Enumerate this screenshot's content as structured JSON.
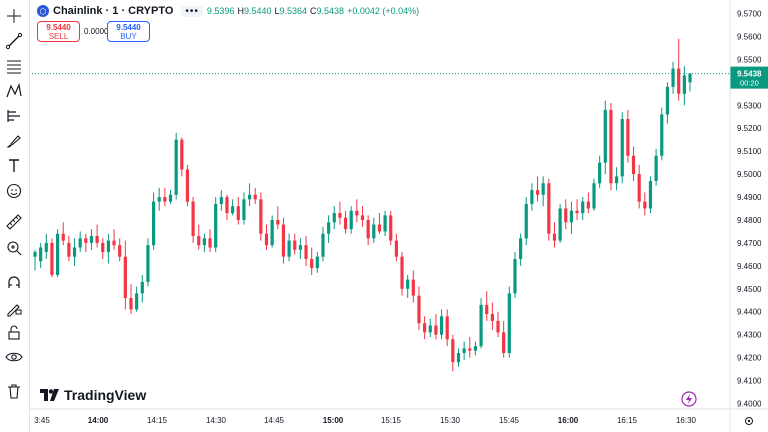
{
  "header": {
    "symbol_icon": "chainlink-logo-icon",
    "title": "Chainlink · 1 · CRYPTO",
    "more_label": "•••",
    "ohlc": {
      "o_value": "9.5396",
      "h_label": "H",
      "h_value": "9.5440",
      "l_label": "L",
      "l_value": "9.5364",
      "c_label": "C",
      "c_value": "9.5438",
      "change": "+0.0042 (+0.04%)"
    }
  },
  "trade": {
    "sell_price": "9.5440",
    "sell_label": "SELL",
    "spread": "0.0000",
    "buy_price": "9.5440",
    "buy_label": "BUY"
  },
  "price_axis": {
    "labels": [
      "9.5700",
      "9.5600",
      "9.5500",
      "9.5400",
      "9.5300",
      "9.5200",
      "9.5100",
      "9.5000",
      "9.4900",
      "9.4800",
      "9.4700",
      "9.4600",
      "9.4500",
      "9.4400",
      "9.4300",
      "9.4200",
      "9.4100",
      "9.4000"
    ],
    "current_price": "9.5438",
    "countdown": "00:20"
  },
  "time_axis": {
    "labels": [
      "3:45",
      "14:00",
      "14:15",
      "14:30",
      "14:45",
      "15:00",
      "15:15",
      "15:30",
      "15:45",
      "16:00",
      "16:15",
      "16:30"
    ]
  },
  "branding": {
    "logo_text": "TradingView"
  },
  "colors": {
    "up": "#089981",
    "down": "#f23645",
    "sell": "#f23645",
    "buy": "#2962ff",
    "price_line": "#089981"
  },
  "toolbar_icons": [
    "crosshair-icon",
    "trend-line-icon",
    "fib-retracement-icon",
    "pattern-icon",
    "prediction-icon",
    "brush-icon",
    "text-icon",
    "emoji-icon",
    "ruler-icon",
    "zoom-in-icon",
    "magnet-icon",
    "lock-drawing-icon",
    "lock-icon",
    "eye-icon",
    "trash-icon"
  ],
  "chart_data": {
    "type": "candlestick",
    "symbol": "Chainlink · 1 · CRYPTO",
    "price_range": [
      9.4,
      9.57
    ],
    "x_range": [
      "13:45",
      "16:31"
    ],
    "candles": [
      {
        "o": 9.464,
        "h": 9.467,
        "l": 9.458,
        "c": 9.466
      },
      {
        "o": 9.462,
        "h": 9.47,
        "l": 9.459,
        "c": 9.468
      },
      {
        "o": 9.466,
        "h": 9.474,
        "l": 9.463,
        "c": 9.47
      },
      {
        "o": 9.47,
        "h": 9.472,
        "l": 9.455,
        "c": 9.456
      },
      {
        "o": 9.456,
        "h": 9.476,
        "l": 9.455,
        "c": 9.474
      },
      {
        "o": 9.474,
        "h": 9.479,
        "l": 9.469,
        "c": 9.471
      },
      {
        "o": 9.47,
        "h": 9.473,
        "l": 9.462,
        "c": 9.464
      },
      {
        "o": 9.464,
        "h": 9.472,
        "l": 9.46,
        "c": 9.468
      },
      {
        "o": 9.468,
        "h": 9.475,
        "l": 9.466,
        "c": 9.472
      },
      {
        "o": 9.472,
        "h": 9.474,
        "l": 9.466,
        "c": 9.47
      },
      {
        "o": 9.47,
        "h": 9.476,
        "l": 9.467,
        "c": 9.473
      },
      {
        "o": 9.473,
        "h": 9.478,
        "l": 9.468,
        "c": 9.47
      },
      {
        "o": 9.47,
        "h": 9.472,
        "l": 9.463,
        "c": 9.466
      },
      {
        "o": 9.466,
        "h": 9.474,
        "l": 9.461,
        "c": 9.471
      },
      {
        "o": 9.471,
        "h": 9.476,
        "l": 9.467,
        "c": 9.469
      },
      {
        "o": 9.469,
        "h": 9.472,
        "l": 9.462,
        "c": 9.464
      },
      {
        "o": 9.464,
        "h": 9.471,
        "l": 9.441,
        "c": 9.446
      },
      {
        "o": 9.446,
        "h": 9.452,
        "l": 9.439,
        "c": 9.441
      },
      {
        "o": 9.441,
        "h": 9.451,
        "l": 9.44,
        "c": 9.448
      },
      {
        "o": 9.448,
        "h": 9.456,
        "l": 9.444,
        "c": 9.453
      },
      {
        "o": 9.453,
        "h": 9.472,
        "l": 9.451,
        "c": 9.469
      },
      {
        "o": 9.469,
        "h": 9.492,
        "l": 9.467,
        "c": 9.488
      },
      {
        "o": 9.488,
        "h": 9.494,
        "l": 9.484,
        "c": 9.49
      },
      {
        "o": 9.49,
        "h": 9.494,
        "l": 9.486,
        "c": 9.488
      },
      {
        "o": 9.488,
        "h": 9.493,
        "l": 9.487,
        "c": 9.491
      },
      {
        "o": 9.491,
        "h": 9.518,
        "l": 9.489,
        "c": 9.515
      },
      {
        "o": 9.515,
        "h": 9.516,
        "l": 9.499,
        "c": 9.502
      },
      {
        "o": 9.502,
        "h": 9.504,
        "l": 9.486,
        "c": 9.488
      },
      {
        "o": 9.488,
        "h": 9.49,
        "l": 9.47,
        "c": 9.473
      },
      {
        "o": 9.473,
        "h": 9.478,
        "l": 9.467,
        "c": 9.469
      },
      {
        "o": 9.469,
        "h": 9.474,
        "l": 9.466,
        "c": 9.472
      },
      {
        "o": 9.472,
        "h": 9.476,
        "l": 9.466,
        "c": 9.468
      },
      {
        "o": 9.468,
        "h": 9.49,
        "l": 9.466,
        "c": 9.487
      },
      {
        "o": 9.487,
        "h": 9.493,
        "l": 9.484,
        "c": 9.49
      },
      {
        "o": 9.49,
        "h": 9.491,
        "l": 9.48,
        "c": 9.483
      },
      {
        "o": 9.483,
        "h": 9.489,
        "l": 9.482,
        "c": 9.486
      },
      {
        "o": 9.486,
        "h": 9.49,
        "l": 9.478,
        "c": 9.48
      },
      {
        "o": 9.48,
        "h": 9.492,
        "l": 9.478,
        "c": 9.489
      },
      {
        "o": 9.489,
        "h": 9.496,
        "l": 9.486,
        "c": 9.491
      },
      {
        "o": 9.491,
        "h": 9.494,
        "l": 9.487,
        "c": 9.489
      },
      {
        "o": 9.489,
        "h": 9.492,
        "l": 9.471,
        "c": 9.474
      },
      {
        "o": 9.474,
        "h": 9.478,
        "l": 9.467,
        "c": 9.469
      },
      {
        "o": 9.469,
        "h": 9.482,
        "l": 9.468,
        "c": 9.48
      },
      {
        "o": 9.48,
        "h": 9.486,
        "l": 9.476,
        "c": 9.478
      },
      {
        "o": 9.478,
        "h": 9.481,
        "l": 9.461,
        "c": 9.464
      },
      {
        "o": 9.464,
        "h": 9.474,
        "l": 9.462,
        "c": 9.471
      },
      {
        "o": 9.471,
        "h": 9.474,
        "l": 9.465,
        "c": 9.467
      },
      {
        "o": 9.467,
        "h": 9.472,
        "l": 9.463,
        "c": 9.469
      },
      {
        "o": 9.469,
        "h": 9.473,
        "l": 9.46,
        "c": 9.463
      },
      {
        "o": 9.463,
        "h": 9.468,
        "l": 9.456,
        "c": 9.459
      },
      {
        "o": 9.459,
        "h": 9.466,
        "l": 9.457,
        "c": 9.464
      },
      {
        "o": 9.464,
        "h": 9.477,
        "l": 9.462,
        "c": 9.474
      },
      {
        "o": 9.474,
        "h": 9.482,
        "l": 9.47,
        "c": 9.479
      },
      {
        "o": 9.479,
        "h": 9.486,
        "l": 9.476,
        "c": 9.483
      },
      {
        "o": 9.483,
        "h": 9.488,
        "l": 9.478,
        "c": 9.481
      },
      {
        "o": 9.481,
        "h": 9.484,
        "l": 9.474,
        "c": 9.476
      },
      {
        "o": 9.476,
        "h": 9.486,
        "l": 9.474,
        "c": 9.484
      },
      {
        "o": 9.484,
        "h": 9.489,
        "l": 9.479,
        "c": 9.482
      },
      {
        "o": 9.482,
        "h": 9.486,
        "l": 9.477,
        "c": 9.48
      },
      {
        "o": 9.48,
        "h": 9.482,
        "l": 9.469,
        "c": 9.472
      },
      {
        "o": 9.472,
        "h": 9.481,
        "l": 9.47,
        "c": 9.478
      },
      {
        "o": 9.478,
        "h": 9.483,
        "l": 9.474,
        "c": 9.475
      },
      {
        "o": 9.475,
        "h": 9.484,
        "l": 9.473,
        "c": 9.482
      },
      {
        "o": 9.482,
        "h": 9.484,
        "l": 9.469,
        "c": 9.471
      },
      {
        "o": 9.471,
        "h": 9.474,
        "l": 9.462,
        "c": 9.464
      },
      {
        "o": 9.464,
        "h": 9.466,
        "l": 9.447,
        "c": 9.45
      },
      {
        "o": 9.45,
        "h": 9.456,
        "l": 9.446,
        "c": 9.454
      },
      {
        "o": 9.454,
        "h": 9.458,
        "l": 9.444,
        "c": 9.447
      },
      {
        "o": 9.447,
        "h": 9.451,
        "l": 9.432,
        "c": 9.435
      },
      {
        "o": 9.435,
        "h": 9.438,
        "l": 9.428,
        "c": 9.431
      },
      {
        "o": 9.431,
        "h": 9.437,
        "l": 9.429,
        "c": 9.434
      },
      {
        "o": 9.434,
        "h": 9.439,
        "l": 9.428,
        "c": 9.43
      },
      {
        "o": 9.43,
        "h": 9.441,
        "l": 9.428,
        "c": 9.438
      },
      {
        "o": 9.438,
        "h": 9.441,
        "l": 9.425,
        "c": 9.428
      },
      {
        "o": 9.428,
        "h": 9.43,
        "l": 9.414,
        "c": 9.418
      },
      {
        "o": 9.418,
        "h": 9.424,
        "l": 9.416,
        "c": 9.422
      },
      {
        "o": 9.422,
        "h": 9.427,
        "l": 9.419,
        "c": 9.424
      },
      {
        "o": 9.424,
        "h": 9.429,
        "l": 9.42,
        "c": 9.423
      },
      {
        "o": 9.423,
        "h": 9.427,
        "l": 9.421,
        "c": 9.425
      },
      {
        "o": 9.425,
        "h": 9.446,
        "l": 9.424,
        "c": 9.443
      },
      {
        "o": 9.443,
        "h": 9.449,
        "l": 9.436,
        "c": 9.439
      },
      {
        "o": 9.439,
        "h": 9.444,
        "l": 9.432,
        "c": 9.436
      },
      {
        "o": 9.436,
        "h": 9.44,
        "l": 9.429,
        "c": 9.431
      },
      {
        "o": 9.431,
        "h": 9.436,
        "l": 9.42,
        "c": 9.422
      },
      {
        "o": 9.422,
        "h": 9.451,
        "l": 9.42,
        "c": 9.448
      },
      {
        "o": 9.448,
        "h": 9.466,
        "l": 9.446,
        "c": 9.463
      },
      {
        "o": 9.463,
        "h": 9.474,
        "l": 9.46,
        "c": 9.472
      },
      {
        "o": 9.472,
        "h": 9.49,
        "l": 9.469,
        "c": 9.487
      },
      {
        "o": 9.487,
        "h": 9.496,
        "l": 9.484,
        "c": 9.493
      },
      {
        "o": 9.493,
        "h": 9.499,
        "l": 9.488,
        "c": 9.491
      },
      {
        "o": 9.491,
        "h": 9.499,
        "l": 9.486,
        "c": 9.496
      },
      {
        "o": 9.496,
        "h": 9.498,
        "l": 9.471,
        "c": 9.474
      },
      {
        "o": 9.474,
        "h": 9.479,
        "l": 9.468,
        "c": 9.471
      },
      {
        "o": 9.471,
        "h": 9.487,
        "l": 9.47,
        "c": 9.485
      },
      {
        "o": 9.485,
        "h": 9.489,
        "l": 9.476,
        "c": 9.479
      },
      {
        "o": 9.479,
        "h": 9.488,
        "l": 9.474,
        "c": 9.484
      },
      {
        "o": 9.484,
        "h": 9.489,
        "l": 9.48,
        "c": 9.483
      },
      {
        "o": 9.483,
        "h": 9.49,
        "l": 9.48,
        "c": 9.488
      },
      {
        "o": 9.488,
        "h": 9.492,
        "l": 9.483,
        "c": 9.485
      },
      {
        "o": 9.485,
        "h": 9.498,
        "l": 9.484,
        "c": 9.496
      },
      {
        "o": 9.496,
        "h": 9.508,
        "l": 9.494,
        "c": 9.505
      },
      {
        "o": 9.505,
        "h": 9.532,
        "l": 9.5,
        "c": 9.528
      },
      {
        "o": 9.528,
        "h": 9.531,
        "l": 9.493,
        "c": 9.496
      },
      {
        "o": 9.496,
        "h": 9.503,
        "l": 9.493,
        "c": 9.499
      },
      {
        "o": 9.499,
        "h": 9.527,
        "l": 9.496,
        "c": 9.524
      },
      {
        "o": 9.524,
        "h": 9.528,
        "l": 9.505,
        "c": 9.508
      },
      {
        "o": 9.508,
        "h": 9.512,
        "l": 9.497,
        "c": 9.5
      },
      {
        "o": 9.5,
        "h": 9.504,
        "l": 9.485,
        "c": 9.488
      },
      {
        "o": 9.488,
        "h": 9.492,
        "l": 9.482,
        "c": 9.485
      },
      {
        "o": 9.485,
        "h": 9.499,
        "l": 9.483,
        "c": 9.497
      },
      {
        "o": 9.497,
        "h": 9.511,
        "l": 9.495,
        "c": 9.508
      },
      {
        "o": 9.508,
        "h": 9.529,
        "l": 9.506,
        "c": 9.526
      },
      {
        "o": 9.526,
        "h": 9.54,
        "l": 9.522,
        "c": 9.538
      },
      {
        "o": 9.538,
        "h": 9.549,
        "l": 9.535,
        "c": 9.546
      },
      {
        "o": 9.546,
        "h": 9.559,
        "l": 9.532,
        "c": 9.535
      },
      {
        "o": 9.535,
        "h": 9.547,
        "l": 9.53,
        "c": 9.543
      },
      {
        "o": 9.54,
        "h": 9.544,
        "l": 9.536,
        "c": 9.5438
      }
    ]
  }
}
